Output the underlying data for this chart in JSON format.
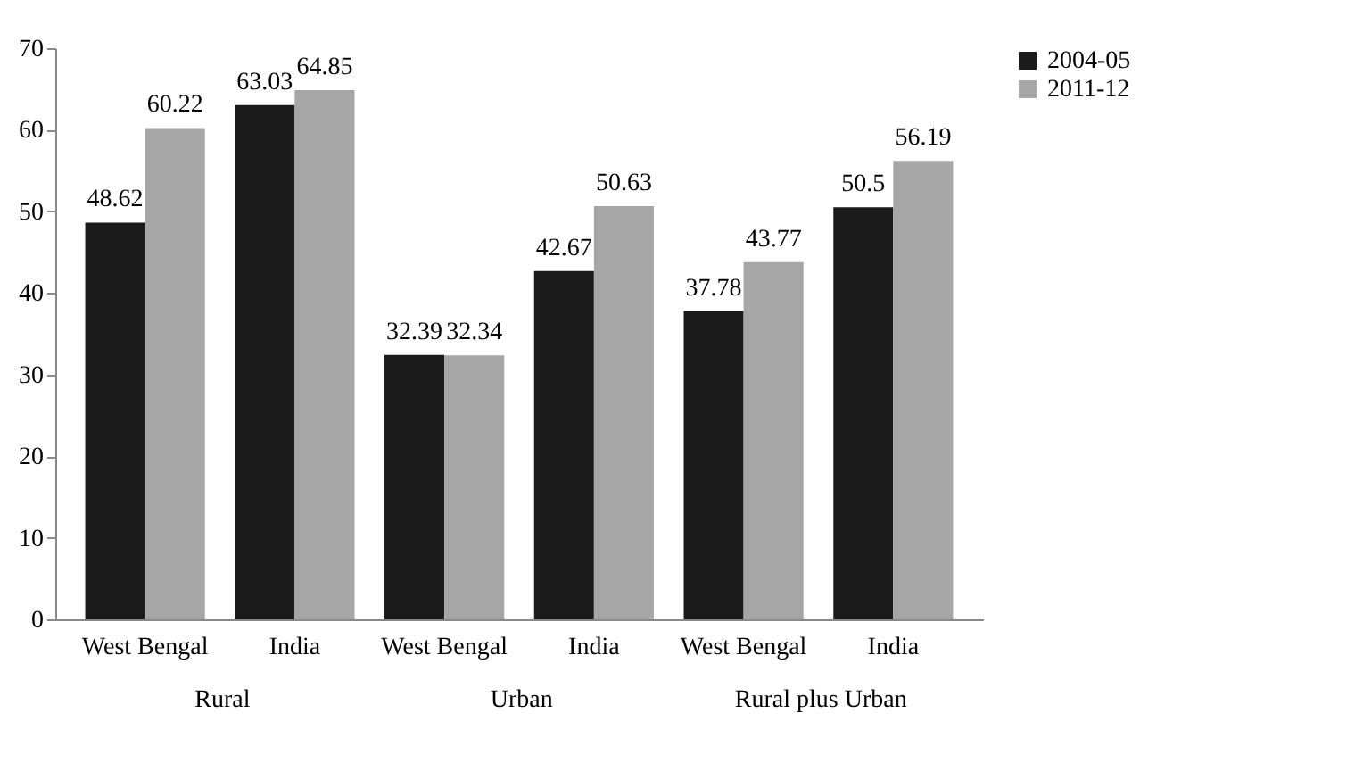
{
  "chart_data": {
    "type": "bar",
    "categories": [
      "West Bengal",
      "India",
      "West Bengal",
      "India",
      "West Bengal",
      "India"
    ],
    "series": [
      {
        "name": "2004-05",
        "color": "#1a1a1a",
        "values": [
          48.62,
          63.03,
          32.39,
          42.67,
          37.78,
          50.5
        ]
      },
      {
        "name": "2011-12",
        "color": "#a6a6a6",
        "values": [
          60.22,
          64.85,
          32.34,
          50.63,
          43.77,
          56.19
        ]
      }
    ],
    "annotations": [
      "Rural",
      "Urban",
      "Rural plus Urban"
    ],
    "ylim": [
      0,
      70
    ],
    "yticks": [
      0,
      10,
      20,
      30,
      40,
      50,
      60,
      70
    ],
    "grid": false,
    "legend": "right",
    "data_labels": true
  }
}
